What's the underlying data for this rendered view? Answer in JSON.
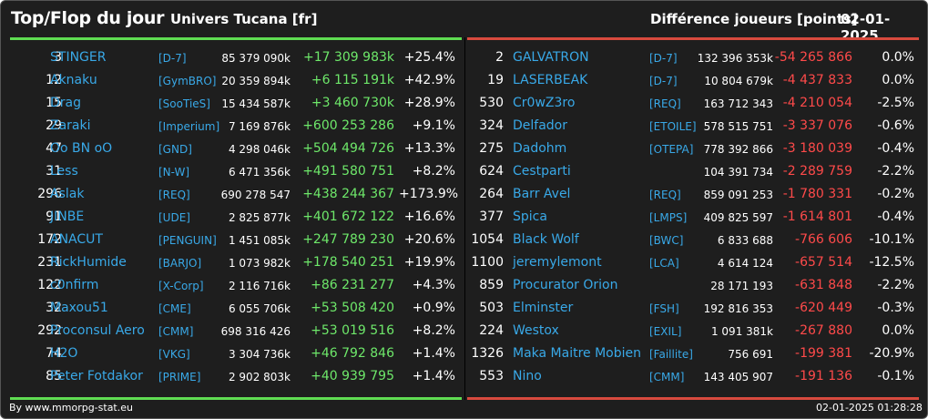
{
  "header": {
    "title": "Top/Flop du jour",
    "universe": "Univers Tucana [fr]",
    "metric": "Différence joueurs [points]",
    "date": "02-01-2025"
  },
  "colors": {
    "positive": "#6ee86a",
    "negative": "#ff4a4a",
    "link": "#39a9e8",
    "top_accent": "#5fdc52",
    "flop_accent": "#d84a3e"
  },
  "top": [
    {
      "rank": "3",
      "name": "STINGER",
      "alliance": "[D-7]",
      "points": "85 379 090k",
      "diff": "+17 309 983k",
      "pct": "+25.4%"
    },
    {
      "rank": "12",
      "name": "Aknaku",
      "alliance": "[GymBRO]",
      "points": "20 359 894k",
      "diff": "+6 115 191k",
      "pct": "+42.9%"
    },
    {
      "rank": "15",
      "name": "Drag",
      "alliance": "[SooTieS]",
      "points": "15 434 587k",
      "diff": "+3 460 730k",
      "pct": "+28.9%"
    },
    {
      "rank": "29",
      "name": "Zaraki",
      "alliance": "[Imperium]",
      "points": "7 169 876k",
      "diff": "+600 253 286",
      "pct": "+9.1%"
    },
    {
      "rank": "47",
      "name": "Oo BN oO",
      "alliance": "[GND]",
      "points": "4 298 046k",
      "diff": "+504 494 726",
      "pct": "+13.3%"
    },
    {
      "rank": "31",
      "name": "Less",
      "alliance": "[N-W]",
      "points": "6 471 356k",
      "diff": "+491 580 751",
      "pct": "+8.2%"
    },
    {
      "rank": "296",
      "name": "Aslak",
      "alliance": "[REQ]",
      "points": "690 278 547",
      "diff": "+438 244 367",
      "pct": "+173.9%"
    },
    {
      "rank": "91",
      "name": "JINBE",
      "alliance": "[UDE]",
      "points": "2 825 877k",
      "diff": "+401 672 122",
      "pct": "+16.6%"
    },
    {
      "rank": "172",
      "name": "ANACUT",
      "alliance": "[PENGUIN]",
      "points": "1 451 085k",
      "diff": "+247 789 230",
      "pct": "+20.6%"
    },
    {
      "rank": "231",
      "name": "RickHumide",
      "alliance": "[BARJO]",
      "points": "1 073 982k",
      "diff": "+178 540 251",
      "pct": "+19.9%"
    },
    {
      "rank": "122",
      "name": "c0nfirm",
      "alliance": "[X-Corp]",
      "points": "2 116 716k",
      "diff": "+86 231 277",
      "pct": "+4.3%"
    },
    {
      "rank": "32",
      "name": "Maxou51",
      "alliance": "[CME]",
      "points": "6 055 706k",
      "diff": "+53 508 420",
      "pct": "+0.9%"
    },
    {
      "rank": "292",
      "name": "Proconsul Aero",
      "alliance": "[CMM]",
      "points": "698 316 426",
      "diff": "+53 019 516",
      "pct": "+8.2%"
    },
    {
      "rank": "74",
      "name": "H2O",
      "alliance": "[VKG]",
      "points": "3 304 736k",
      "diff": "+46 792 846",
      "pct": "+1.4%"
    },
    {
      "rank": "85",
      "name": "Peter Fotdakor",
      "alliance": "[PRIME]",
      "points": "2 902 803k",
      "diff": "+40 939 795",
      "pct": "+1.4%"
    }
  ],
  "flop": [
    {
      "rank": "2",
      "name": "GALVATRON",
      "alliance": "[D-7]",
      "points": "132 396 353k",
      "diff": "-54 265 866",
      "pct": "0.0%"
    },
    {
      "rank": "19",
      "name": "LASERBEAK",
      "alliance": "[D-7]",
      "points": "10 804 679k",
      "diff": "-4 437 833",
      "pct": "0.0%"
    },
    {
      "rank": "530",
      "name": "Cr0wZ3ro",
      "alliance": "[REQ]",
      "points": "163 712 343",
      "diff": "-4 210 054",
      "pct": "-2.5%"
    },
    {
      "rank": "324",
      "name": "Delfador",
      "alliance": "[ETOILE]",
      "points": "578 515 751",
      "diff": "-3 337 076",
      "pct": "-0.6%"
    },
    {
      "rank": "275",
      "name": "Dadohm",
      "alliance": "[OTEPA]",
      "points": "778 392 866",
      "diff": "-3 180 039",
      "pct": "-0.4%"
    },
    {
      "rank": "624",
      "name": "Cestparti",
      "alliance": "",
      "points": "104 391 734",
      "diff": "-2 289 759",
      "pct": "-2.2%"
    },
    {
      "rank": "264",
      "name": "Barr Avel",
      "alliance": "[REQ]",
      "points": "859 091 253",
      "diff": "-1 780 331",
      "pct": "-0.2%"
    },
    {
      "rank": "377",
      "name": "Spica",
      "alliance": "[LMPS]",
      "points": "409 825 597",
      "diff": "-1 614 801",
      "pct": "-0.4%"
    },
    {
      "rank": "1054",
      "name": "Black Wolf",
      "alliance": "[BWC]",
      "points": "6 833 688",
      "diff": "-766 606",
      "pct": "-10.1%"
    },
    {
      "rank": "1100",
      "name": "jeremylemont",
      "alliance": "[LCA]",
      "points": "4 614 124",
      "diff": "-657 514",
      "pct": "-12.5%"
    },
    {
      "rank": "859",
      "name": "Procurator Orion",
      "alliance": "",
      "points": "28 171 193",
      "diff": "-631 848",
      "pct": "-2.2%"
    },
    {
      "rank": "503",
      "name": "Elminster",
      "alliance": "[FSH]",
      "points": "192 816 353",
      "diff": "-620 449",
      "pct": "-0.3%"
    },
    {
      "rank": "224",
      "name": "Westox",
      "alliance": "[EXIL]",
      "points": "1 091 381k",
      "diff": "-267 880",
      "pct": "0.0%"
    },
    {
      "rank": "1326",
      "name": "Maka Maitre Mobien",
      "alliance": "[Faillite]",
      "points": "756 691",
      "diff": "-199 381",
      "pct": "-20.9%"
    },
    {
      "rank": "553",
      "name": "Nino",
      "alliance": "[CMM]",
      "points": "143 405 907",
      "diff": "-191 136",
      "pct": "-0.1%"
    }
  ],
  "footer": {
    "source": "By www.mmorpg-stat.eu",
    "timestamp": "02-01-2025 01:28:28"
  }
}
